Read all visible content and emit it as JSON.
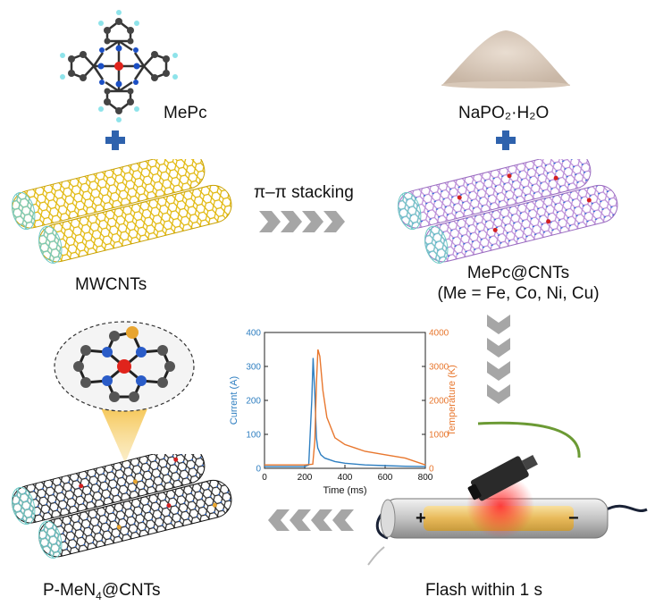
{
  "labels": {
    "mepc": "MePc",
    "naph": "NaPO₂·H₂O",
    "mwcnts": "MWCNTs",
    "stacking": "π–π stacking",
    "mepc_cnts": "MePc@CNTs",
    "me_list": "(Me = Fe, Co, Ni, Cu)",
    "flash": "Flash within 1 s",
    "product_prefix": "P-MeN",
    "product_sub": "4",
    "product_suffix": "@CNTs",
    "plus_terminal": "+",
    "minus_terminal": "−"
  },
  "chart_data": {
    "type": "line",
    "xlabel": "Time (ms)",
    "ylabel_left": "Current (A)",
    "ylabel_right": "Temperature (K)",
    "xlim": [
      0,
      800
    ],
    "ylim_left": [
      0,
      400
    ],
    "ylim_right": [
      0,
      4000
    ],
    "x_ticks": [
      "0",
      "200",
      "400",
      "600",
      "800"
    ],
    "y_ticks_left": [
      "0",
      "100",
      "200",
      "300",
      "400"
    ],
    "y_ticks_right": [
      "0",
      "1000",
      "2000",
      "3000",
      "4000"
    ],
    "series": [
      {
        "axis": "left",
        "color": "#2f7fc1",
        "x": [
          0,
          100,
          200,
          220,
          235,
          242,
          250,
          258,
          265,
          280,
          300,
          350,
          400,
          500,
          600,
          700,
          800
        ],
        "y": [
          5,
          5,
          5,
          10,
          200,
          325,
          220,
          90,
          60,
          40,
          30,
          20,
          15,
          10,
          8,
          6,
          5
        ]
      },
      {
        "axis": "right",
        "color": "#e8772e",
        "x": [
          0,
          100,
          200,
          240,
          250,
          258,
          266,
          275,
          290,
          310,
          350,
          400,
          450,
          500,
          600,
          700,
          800
        ],
        "y": [
          100,
          100,
          100,
          120,
          800,
          2500,
          3500,
          3300,
          2300,
          1500,
          900,
          700,
          600,
          500,
          400,
          300,
          100
        ]
      }
    ]
  },
  "colors": {
    "cnt_outer": "#222222",
    "cnt_inner": "#7fd0cf",
    "cnt_gold": "#e0b400",
    "cnt_purple": "#b889d6",
    "plus_sign": "#2e62ad",
    "chevron": "#a6a6a6",
    "current": "#2f7fc1",
    "temperature": "#e8772e"
  }
}
